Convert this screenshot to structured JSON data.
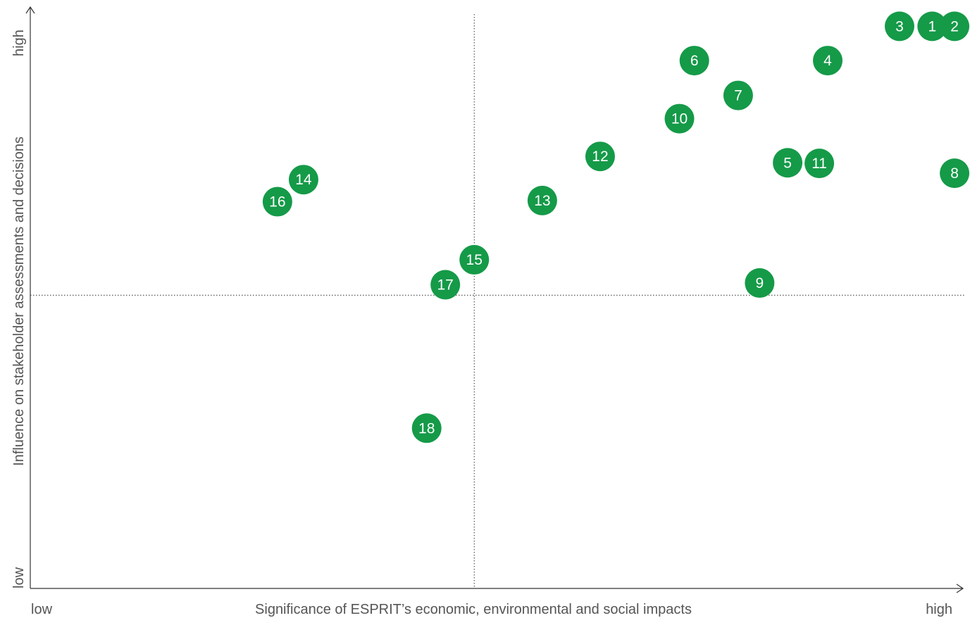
{
  "chart_data": {
    "type": "scatter",
    "title": "",
    "xlabel": "Significance of ESPRIT’s economic, environmental and social impacts",
    "ylabel": "Influence on stakeholder assessments and decisions",
    "x_low_label": "low",
    "x_high_label": "high",
    "y_low_label": "low",
    "y_high_label": "high",
    "xlim": [
      0,
      100
    ],
    "ylim": [
      0,
      100
    ],
    "x_threshold": 47.6,
    "y_threshold": 50.5,
    "grid": false,
    "legend": "none",
    "point_color": "#159a48",
    "points": [
      {
        "label": "1",
        "x": 96.7,
        "y": 96.8
      },
      {
        "label": "2",
        "x": 99.1,
        "y": 96.8
      },
      {
        "label": "3",
        "x": 93.2,
        "y": 96.8
      },
      {
        "label": "4",
        "x": 85.5,
        "y": 90.9
      },
      {
        "label": "5",
        "x": 81.2,
        "y": 73.3
      },
      {
        "label": "6",
        "x": 71.2,
        "y": 90.9
      },
      {
        "label": "7",
        "x": 75.9,
        "y": 84.9
      },
      {
        "label": "8",
        "x": 99.1,
        "y": 71.5
      },
      {
        "label": "9",
        "x": 78.2,
        "y": 52.6
      },
      {
        "label": "10",
        "x": 69.6,
        "y": 80.9
      },
      {
        "label": "11",
        "x": 84.6,
        "y": 73.2
      },
      {
        "label": "12",
        "x": 61.1,
        "y": 74.4
      },
      {
        "label": "13",
        "x": 54.9,
        "y": 66.8
      },
      {
        "label": "14",
        "x": 29.3,
        "y": 70.4
      },
      {
        "label": "15",
        "x": 47.6,
        "y": 56.6
      },
      {
        "label": "16",
        "x": 26.5,
        "y": 66.6
      },
      {
        "label": "17",
        "x": 44.5,
        "y": 52.3
      },
      {
        "label": "18",
        "x": 42.5,
        "y": 27.6
      }
    ]
  }
}
